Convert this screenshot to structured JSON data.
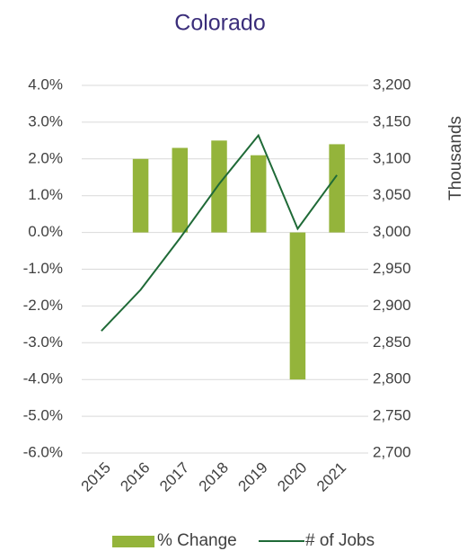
{
  "chart_data": {
    "type": "bar",
    "title": "Colorado",
    "y2_label": "Thousands",
    "categories": [
      "2015",
      "2016",
      "2017",
      "2018",
      "2019",
      "2020",
      "2021"
    ],
    "series": [
      {
        "name": "% Change",
        "type": "bar",
        "color": "#94b43b",
        "values": [
          null,
          2.0,
          2.3,
          2.5,
          2.1,
          -4.0,
          2.4
        ]
      },
      {
        "name": "# of Jobs",
        "type": "line",
        "color": "#1f6a37",
        "axis": "y2",
        "values": [
          2866,
          2922,
          2992,
          3066,
          3132,
          3005,
          3078
        ]
      }
    ],
    "ylim": [
      -6,
      4
    ],
    "yticks": [
      {
        "value": -6,
        "label": "-6.0%"
      },
      {
        "value": -5,
        "label": "-5.0%"
      },
      {
        "value": -4,
        "label": "-4.0%"
      },
      {
        "value": -3,
        "label": "-3.0%"
      },
      {
        "value": -2,
        "label": "-2.0%"
      },
      {
        "value": -1,
        "label": "-1.0%"
      },
      {
        "value": 0,
        "label": "0.0%"
      },
      {
        "value": 1,
        "label": "1.0%"
      },
      {
        "value": 2,
        "label": "2.0%"
      },
      {
        "value": 3,
        "label": "3.0%"
      },
      {
        "value": 4,
        "label": "4.0%"
      }
    ],
    "y2lim": [
      2700,
      3200
    ],
    "y2ticks": [
      {
        "value": 2700,
        "label": "2,700"
      },
      {
        "value": 2750,
        "label": "2,750"
      },
      {
        "value": 2800,
        "label": "2,800"
      },
      {
        "value": 2850,
        "label": "2,850"
      },
      {
        "value": 2900,
        "label": "2,900"
      },
      {
        "value": 2950,
        "label": "2,950"
      },
      {
        "value": 3000,
        "label": "3,000"
      },
      {
        "value": 3050,
        "label": "3,050"
      },
      {
        "value": 3100,
        "label": "3,100"
      },
      {
        "value": 3150,
        "label": "3,150"
      },
      {
        "value": 3200,
        "label": "3,200"
      }
    ],
    "grid": true,
    "legend": "bottom"
  }
}
